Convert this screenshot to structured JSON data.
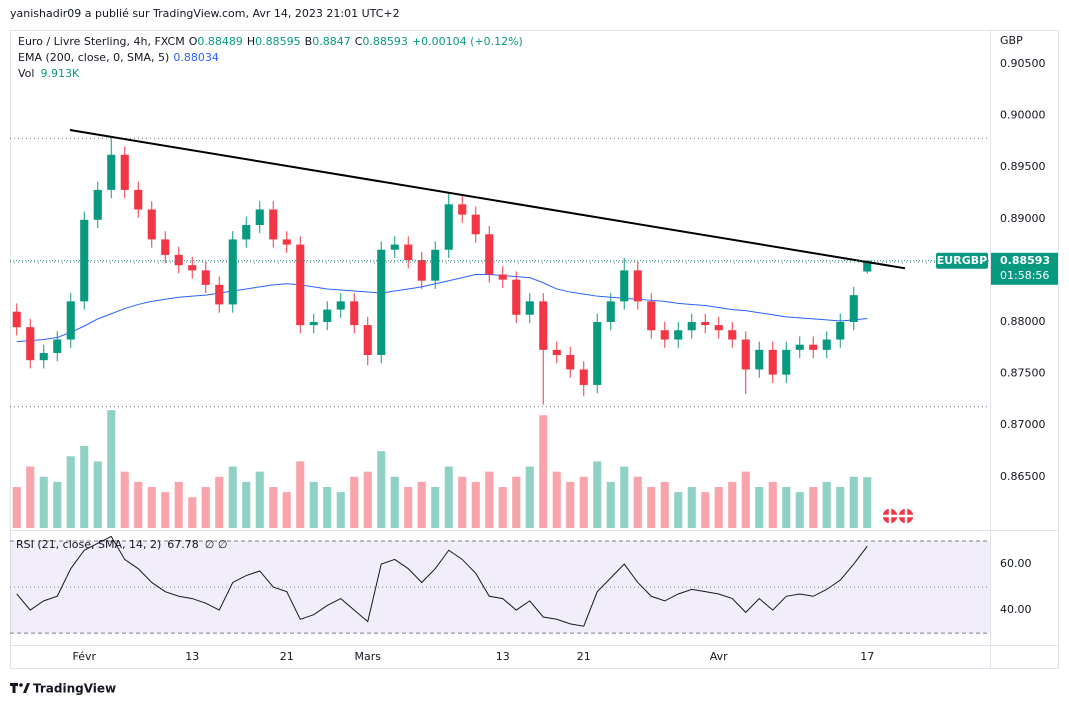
{
  "header": {
    "byline": "yanishadir09 a publié sur TradingView.com, Avr 14, 2023 21:01 UTC+2"
  },
  "footer": {
    "brand": "TradingView"
  },
  "chart_data": {
    "type": "candlestick",
    "title": "Euro / Livre Sterling, 4h, FXCM",
    "ohlc_letters": [
      "O",
      "H",
      "B",
      "C"
    ],
    "change": "+0.00104 (+0.12%)",
    "symbol": "EURGBP",
    "countdown": "01:58:56",
    "currency": "GBP",
    "categories": [
      null,
      null,
      null,
      null,
      null,
      "Févr",
      null,
      null,
      null,
      null,
      null,
      null,
      null,
      "13",
      null,
      null,
      null,
      null,
      null,
      null,
      "21",
      null,
      null,
      null,
      null,
      null,
      "Mars",
      null,
      null,
      null,
      null,
      null,
      null,
      null,
      null,
      null,
      "13",
      null,
      null,
      null,
      null,
      null,
      "21",
      null,
      null,
      null,
      null,
      null,
      null,
      null,
      null,
      null,
      "Avr",
      null,
      null,
      null,
      null,
      null,
      null,
      null,
      null,
      null,
      null,
      "17"
    ],
    "open": [
      0.881,
      0.8795,
      0.8763,
      0.877,
      0.8783,
      0.882,
      0.8899,
      0.8928,
      0.8962,
      0.8928,
      0.8909,
      0.888,
      0.8865,
      0.8855,
      0.885,
      0.8836,
      0.8817,
      0.888,
      0.8894,
      0.8909,
      0.888,
      0.8875,
      0.8797,
      0.88,
      0.8812,
      0.882,
      0.8797,
      0.8768,
      0.887,
      0.8875,
      0.886,
      0.884,
      0.887,
      0.8914,
      0.8904,
      0.8885,
      0.8846,
      0.8841,
      0.8807,
      0.882,
      0.8773,
      0.8768,
      0.8754,
      0.8739,
      0.88,
      0.882,
      0.885,
      0.882,
      0.8792,
      0.8783,
      0.8792,
      0.88,
      0.8797,
      0.8792,
      0.8783,
      0.8754,
      0.8773,
      0.8749,
      0.8773,
      0.8778,
      0.8773,
      0.8783,
      0.88,
      0.88489
    ],
    "high": [
      0.8818,
      0.8803,
      0.8778,
      0.8791,
      0.8828,
      0.8907,
      0.8936,
      0.8978,
      0.897,
      0.8936,
      0.8917,
      0.8888,
      0.8873,
      0.8863,
      0.8858,
      0.8844,
      0.8888,
      0.8902,
      0.8917,
      0.8917,
      0.8888,
      0.8883,
      0.8808,
      0.882,
      0.8828,
      0.8828,
      0.8805,
      0.8878,
      0.8883,
      0.8883,
      0.8868,
      0.8878,
      0.8926,
      0.8922,
      0.8912,
      0.8893,
      0.8854,
      0.8849,
      0.8828,
      0.8828,
      0.8781,
      0.8776,
      0.8762,
      0.8808,
      0.8828,
      0.8862,
      0.8858,
      0.8828,
      0.88,
      0.88,
      0.8808,
      0.8808,
      0.8805,
      0.88,
      0.8791,
      0.8781,
      0.8781,
      0.8781,
      0.8786,
      0.8786,
      0.8791,
      0.8808,
      0.8834,
      0.88595
    ],
    "low": [
      0.8787,
      0.8755,
      0.8755,
      0.8762,
      0.8775,
      0.8812,
      0.8891,
      0.892,
      0.892,
      0.8901,
      0.8872,
      0.8857,
      0.8847,
      0.8842,
      0.8828,
      0.8809,
      0.8809,
      0.8872,
      0.8886,
      0.8872,
      0.8867,
      0.8789,
      0.8789,
      0.8792,
      0.8804,
      0.8789,
      0.8758,
      0.876,
      0.8862,
      0.8852,
      0.8832,
      0.8832,
      0.8862,
      0.8896,
      0.8877,
      0.8838,
      0.8833,
      0.8799,
      0.8799,
      0.872,
      0.876,
      0.8746,
      0.8728,
      0.8731,
      0.8792,
      0.8812,
      0.8812,
      0.8784,
      0.8775,
      0.8775,
      0.8784,
      0.8789,
      0.8784,
      0.8775,
      0.873,
      0.8746,
      0.8741,
      0.8741,
      0.8765,
      0.8765,
      0.8765,
      0.8775,
      0.8792,
      0.8847
    ],
    "close": [
      0.8795,
      0.8763,
      0.877,
      0.8783,
      0.882,
      0.8899,
      0.8928,
      0.8962,
      0.8928,
      0.8909,
      0.888,
      0.8865,
      0.8855,
      0.885,
      0.8836,
      0.8817,
      0.888,
      0.8894,
      0.8909,
      0.888,
      0.8875,
      0.8797,
      0.88,
      0.8812,
      0.882,
      0.8797,
      0.8768,
      0.887,
      0.8875,
      0.886,
      0.884,
      0.887,
      0.8914,
      0.8904,
      0.8885,
      0.8846,
      0.8841,
      0.8807,
      0.882,
      0.8773,
      0.8768,
      0.8754,
      0.8739,
      0.88,
      0.882,
      0.885,
      0.882,
      0.8792,
      0.8783,
      0.8792,
      0.88,
      0.8797,
      0.8792,
      0.8783,
      0.8754,
      0.8773,
      0.8749,
      0.8773,
      0.8778,
      0.8773,
      0.8783,
      0.88,
      0.8826,
      0.88593
    ],
    "up_color": "#089981",
    "down_color": "#f23645",
    "ylim": [
      0.86004,
      0.90829
    ],
    "yticks": [
      {
        "value": 0.905,
        "label": "0.90500"
      },
      {
        "value": 0.9,
        "label": "0.90000"
      },
      {
        "value": 0.895,
        "label": "0.89500"
      },
      {
        "value": 0.89,
        "label": "0.89000"
      },
      {
        "value": 0.885,
        "label": "0.88500"
      },
      {
        "value": 0.88,
        "label": "0.88000"
      },
      {
        "value": 0.875,
        "label": "0.87500"
      },
      {
        "value": 0.87,
        "label": "0.87000"
      },
      {
        "value": 0.865,
        "label": "0.86500"
      }
    ],
    "grid": false,
    "levels": [
      0.8978,
      0.8858,
      0.8718
    ],
    "trendline": {
      "from": [
        3.94,
        0.8986
      ],
      "to": [
        65.8,
        0.8852
      ]
    },
    "ema": {
      "label": "EMA (200, close, 0, SMA, 5)",
      "color": "#2962ff",
      "values": [
        0.8781,
        0.8782,
        0.8783,
        0.8785,
        0.879,
        0.8796,
        0.8803,
        0.8808,
        0.8813,
        0.8817,
        0.882,
        0.8822,
        0.8824,
        0.8825,
        0.8826,
        0.8828,
        0.883,
        0.8832,
        0.8834,
        0.8836,
        0.8837,
        0.8836,
        0.8834,
        0.8832,
        0.8831,
        0.883,
        0.8829,
        0.8828,
        0.883,
        0.8832,
        0.8834,
        0.8837,
        0.884,
        0.8843,
        0.8846,
        0.8846,
        0.8845,
        0.8844,
        0.8843,
        0.8838,
        0.8832,
        0.8829,
        0.8827,
        0.8825,
        0.8824,
        0.8823,
        0.8822,
        0.8821,
        0.882,
        0.8818,
        0.8817,
        0.8816,
        0.8814,
        0.8812,
        0.8811,
        0.8809,
        0.8807,
        0.8805,
        0.8804,
        0.8803,
        0.8802,
        0.8801,
        0.8802,
        0.88034
      ]
    },
    "volume": {
      "label": "Vol",
      "value_label": "9.913K",
      "ylim": [
        0,
        24
      ],
      "values": [
        8,
        12,
        10,
        9,
        14,
        16,
        13,
        23,
        11,
        9,
        8,
        7,
        9,
        6,
        8,
        10,
        12,
        9,
        11,
        8,
        7,
        13,
        9,
        8,
        7,
        10,
        11,
        15,
        10,
        8,
        9,
        8,
        12,
        10,
        9,
        11,
        8,
        10,
        12,
        22,
        11,
        9,
        10,
        13,
        9,
        12,
        10,
        8,
        9,
        7,
        8,
        7,
        8,
        9,
        11,
        8,
        9,
        8,
        7,
        8,
        9,
        8,
        10,
        9.913
      ]
    },
    "rsi": {
      "label": "RSI (21, close, SMA, 14, 2)",
      "extra": "∅ ∅",
      "color": "#131722",
      "ylim": [
        25.7,
        74.8
      ],
      "bands": [
        30,
        70
      ],
      "middle": 50,
      "yticks": [
        {
          "value": 40,
          "label": "40.00"
        },
        {
          "value": 60,
          "label": "60.00"
        }
      ],
      "values": [
        47,
        40,
        44,
        46,
        58,
        66,
        69,
        72,
        62,
        58,
        52,
        48,
        46,
        45,
        43,
        40,
        52,
        55,
        57,
        50,
        48,
        36,
        38,
        42,
        45,
        40,
        35,
        60,
        62,
        58,
        52,
        58,
        66,
        62,
        56,
        46,
        45,
        40,
        44,
        37,
        36,
        34,
        33,
        48,
        54,
        60,
        52,
        46,
        44,
        47,
        49,
        48,
        47,
        45,
        39,
        45,
        40,
        46,
        47,
        46,
        49,
        53,
        60,
        67.78
      ]
    }
  }
}
